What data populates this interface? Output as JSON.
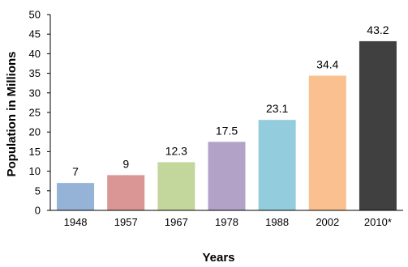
{
  "chart_data": {
    "type": "bar",
    "categories": [
      "1948",
      "1957",
      "1967",
      "1978",
      "1988",
      "2002",
      "2010*"
    ],
    "values": [
      7,
      9,
      12.3,
      17.5,
      23.1,
      34.4,
      43.2
    ],
    "data_labels": [
      "7",
      "9",
      "12.3",
      "17.5",
      "23.1",
      "34.4",
      "43.2"
    ],
    "xlabel": "Years",
    "ylabel": "Population in Millions",
    "ylim": [
      0,
      50
    ],
    "yticks": [
      0,
      5,
      10,
      15,
      20,
      25,
      30,
      35,
      40,
      45,
      50
    ],
    "grid": false,
    "colors": [
      "#95b3d7",
      "#d99694",
      "#c3d69b",
      "#b3a2c7",
      "#93cddd",
      "#fac090",
      "#404040"
    ]
  }
}
